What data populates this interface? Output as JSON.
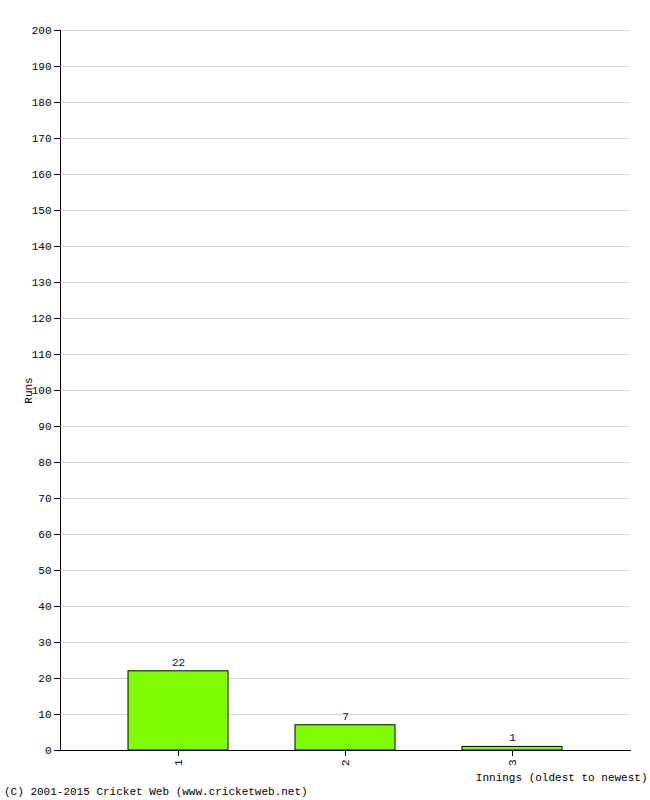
{
  "chart_data": {
    "type": "bar",
    "categories": [
      "1",
      "2",
      "3"
    ],
    "values": [
      22,
      7,
      1
    ],
    "color": "#80ff00",
    "ylabel": "Runs",
    "xlabel": "Innings (oldest to newest)",
    "caption": "(C) 2001-2015 Cricket Web (www.cricketweb.net)",
    "ylim": [
      0,
      200
    ],
    "yticks": [
      0,
      10,
      20,
      30,
      40,
      50,
      60,
      70,
      80,
      90,
      100,
      110,
      120,
      130,
      140,
      150,
      160,
      170,
      180,
      190,
      200
    ],
    "grid": true,
    "data_labels": true
  }
}
